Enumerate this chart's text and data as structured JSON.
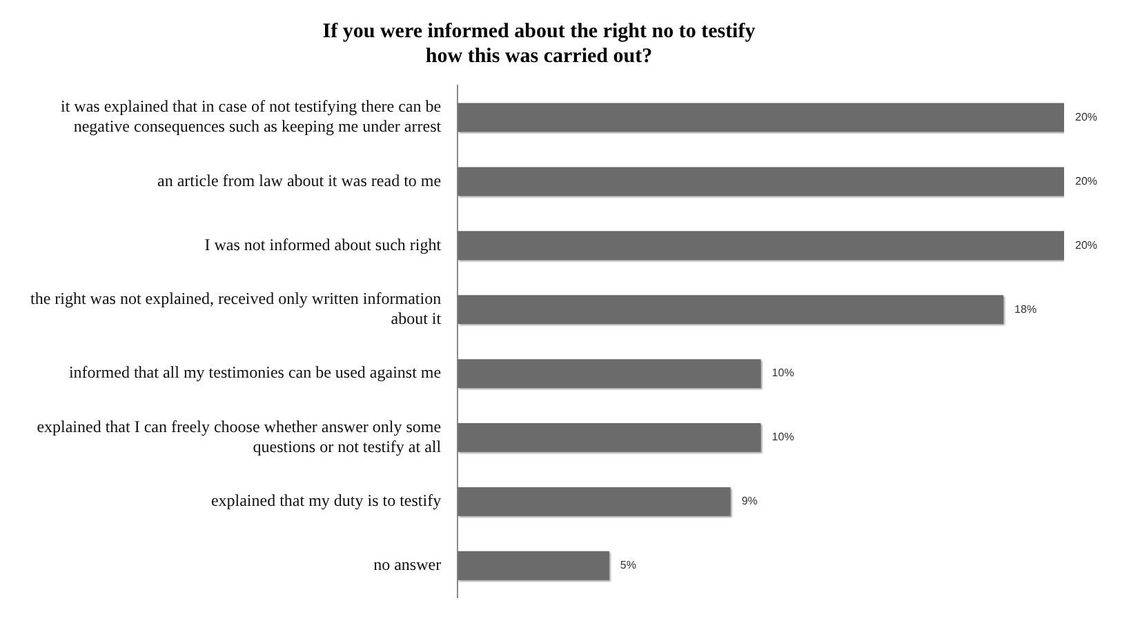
{
  "chart_data": {
    "type": "bar",
    "orientation": "horizontal",
    "title": "If you were informed about the right no to testify\nhow this was carried out?",
    "categories": [
      "it was explained that in case of not testifying there can be negative consequences such as keeping me under arrest",
      "an article from law about it was read to me",
      "I was not informed about such right",
      "the right was not explained, received only written information about it",
      "informed that all my testimonies can be used against me",
      "explained that I can freely choose whether answer only some questions or not testify at all",
      "explained that my duty is to testify",
      "no answer"
    ],
    "values": [
      20,
      20,
      20,
      18,
      10,
      10,
      9,
      5
    ],
    "value_labels": [
      "20%",
      "20%",
      "20%",
      "18%",
      "10%",
      "10%",
      "9%",
      "5%"
    ],
    "color": "#6b6b6b",
    "grid": false,
    "legend": false,
    "tick_labels": "y"
  }
}
